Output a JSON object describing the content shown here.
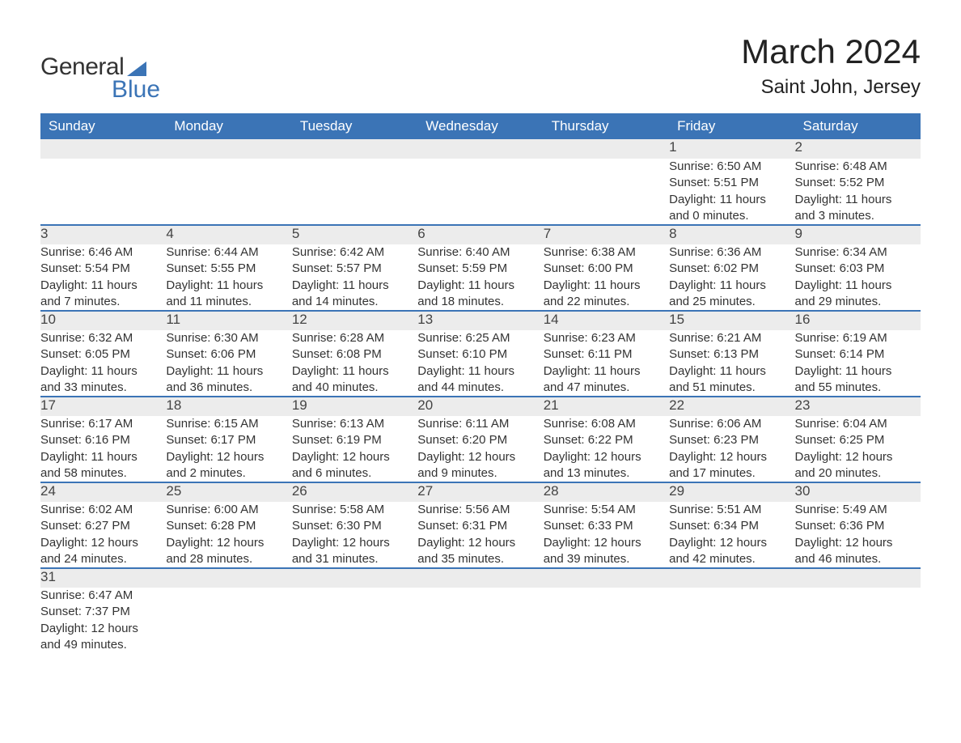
{
  "logo": {
    "text1": "General",
    "text2": "Blue",
    "brand_color": "#3b74b6"
  },
  "title": "March 2024",
  "location": "Saint John, Jersey",
  "day_headers": [
    "Sunday",
    "Monday",
    "Tuesday",
    "Wednesday",
    "Thursday",
    "Friday",
    "Saturday"
  ],
  "header_bg": "#3b74b6",
  "header_fg": "#ffffff",
  "row_alt_bg": "#ececec",
  "divider_color": "#3b74b6",
  "weeks": [
    [
      null,
      null,
      null,
      null,
      null,
      {
        "n": "1",
        "sunrise": "Sunrise: 6:50 AM",
        "sunset": "Sunset: 5:51 PM",
        "d1": "Daylight: 11 hours",
        "d2": "and 0 minutes."
      },
      {
        "n": "2",
        "sunrise": "Sunrise: 6:48 AM",
        "sunset": "Sunset: 5:52 PM",
        "d1": "Daylight: 11 hours",
        "d2": "and 3 minutes."
      }
    ],
    [
      {
        "n": "3",
        "sunrise": "Sunrise: 6:46 AM",
        "sunset": "Sunset: 5:54 PM",
        "d1": "Daylight: 11 hours",
        "d2": "and 7 minutes."
      },
      {
        "n": "4",
        "sunrise": "Sunrise: 6:44 AM",
        "sunset": "Sunset: 5:55 PM",
        "d1": "Daylight: 11 hours",
        "d2": "and 11 minutes."
      },
      {
        "n": "5",
        "sunrise": "Sunrise: 6:42 AM",
        "sunset": "Sunset: 5:57 PM",
        "d1": "Daylight: 11 hours",
        "d2": "and 14 minutes."
      },
      {
        "n": "6",
        "sunrise": "Sunrise: 6:40 AM",
        "sunset": "Sunset: 5:59 PM",
        "d1": "Daylight: 11 hours",
        "d2": "and 18 minutes."
      },
      {
        "n": "7",
        "sunrise": "Sunrise: 6:38 AM",
        "sunset": "Sunset: 6:00 PM",
        "d1": "Daylight: 11 hours",
        "d2": "and 22 minutes."
      },
      {
        "n": "8",
        "sunrise": "Sunrise: 6:36 AM",
        "sunset": "Sunset: 6:02 PM",
        "d1": "Daylight: 11 hours",
        "d2": "and 25 minutes."
      },
      {
        "n": "9",
        "sunrise": "Sunrise: 6:34 AM",
        "sunset": "Sunset: 6:03 PM",
        "d1": "Daylight: 11 hours",
        "d2": "and 29 minutes."
      }
    ],
    [
      {
        "n": "10",
        "sunrise": "Sunrise: 6:32 AM",
        "sunset": "Sunset: 6:05 PM",
        "d1": "Daylight: 11 hours",
        "d2": "and 33 minutes."
      },
      {
        "n": "11",
        "sunrise": "Sunrise: 6:30 AM",
        "sunset": "Sunset: 6:06 PM",
        "d1": "Daylight: 11 hours",
        "d2": "and 36 minutes."
      },
      {
        "n": "12",
        "sunrise": "Sunrise: 6:28 AM",
        "sunset": "Sunset: 6:08 PM",
        "d1": "Daylight: 11 hours",
        "d2": "and 40 minutes."
      },
      {
        "n": "13",
        "sunrise": "Sunrise: 6:25 AM",
        "sunset": "Sunset: 6:10 PM",
        "d1": "Daylight: 11 hours",
        "d2": "and 44 minutes."
      },
      {
        "n": "14",
        "sunrise": "Sunrise: 6:23 AM",
        "sunset": "Sunset: 6:11 PM",
        "d1": "Daylight: 11 hours",
        "d2": "and 47 minutes."
      },
      {
        "n": "15",
        "sunrise": "Sunrise: 6:21 AM",
        "sunset": "Sunset: 6:13 PM",
        "d1": "Daylight: 11 hours",
        "d2": "and 51 minutes."
      },
      {
        "n": "16",
        "sunrise": "Sunrise: 6:19 AM",
        "sunset": "Sunset: 6:14 PM",
        "d1": "Daylight: 11 hours",
        "d2": "and 55 minutes."
      }
    ],
    [
      {
        "n": "17",
        "sunrise": "Sunrise: 6:17 AM",
        "sunset": "Sunset: 6:16 PM",
        "d1": "Daylight: 11 hours",
        "d2": "and 58 minutes."
      },
      {
        "n": "18",
        "sunrise": "Sunrise: 6:15 AM",
        "sunset": "Sunset: 6:17 PM",
        "d1": "Daylight: 12 hours",
        "d2": "and 2 minutes."
      },
      {
        "n": "19",
        "sunrise": "Sunrise: 6:13 AM",
        "sunset": "Sunset: 6:19 PM",
        "d1": "Daylight: 12 hours",
        "d2": "and 6 minutes."
      },
      {
        "n": "20",
        "sunrise": "Sunrise: 6:11 AM",
        "sunset": "Sunset: 6:20 PM",
        "d1": "Daylight: 12 hours",
        "d2": "and 9 minutes."
      },
      {
        "n": "21",
        "sunrise": "Sunrise: 6:08 AM",
        "sunset": "Sunset: 6:22 PM",
        "d1": "Daylight: 12 hours",
        "d2": "and 13 minutes."
      },
      {
        "n": "22",
        "sunrise": "Sunrise: 6:06 AM",
        "sunset": "Sunset: 6:23 PM",
        "d1": "Daylight: 12 hours",
        "d2": "and 17 minutes."
      },
      {
        "n": "23",
        "sunrise": "Sunrise: 6:04 AM",
        "sunset": "Sunset: 6:25 PM",
        "d1": "Daylight: 12 hours",
        "d2": "and 20 minutes."
      }
    ],
    [
      {
        "n": "24",
        "sunrise": "Sunrise: 6:02 AM",
        "sunset": "Sunset: 6:27 PM",
        "d1": "Daylight: 12 hours",
        "d2": "and 24 minutes."
      },
      {
        "n": "25",
        "sunrise": "Sunrise: 6:00 AM",
        "sunset": "Sunset: 6:28 PM",
        "d1": "Daylight: 12 hours",
        "d2": "and 28 minutes."
      },
      {
        "n": "26",
        "sunrise": "Sunrise: 5:58 AM",
        "sunset": "Sunset: 6:30 PM",
        "d1": "Daylight: 12 hours",
        "d2": "and 31 minutes."
      },
      {
        "n": "27",
        "sunrise": "Sunrise: 5:56 AM",
        "sunset": "Sunset: 6:31 PM",
        "d1": "Daylight: 12 hours",
        "d2": "and 35 minutes."
      },
      {
        "n": "28",
        "sunrise": "Sunrise: 5:54 AM",
        "sunset": "Sunset: 6:33 PM",
        "d1": "Daylight: 12 hours",
        "d2": "and 39 minutes."
      },
      {
        "n": "29",
        "sunrise": "Sunrise: 5:51 AM",
        "sunset": "Sunset: 6:34 PM",
        "d1": "Daylight: 12 hours",
        "d2": "and 42 minutes."
      },
      {
        "n": "30",
        "sunrise": "Sunrise: 5:49 AM",
        "sunset": "Sunset: 6:36 PM",
        "d1": "Daylight: 12 hours",
        "d2": "and 46 minutes."
      }
    ],
    [
      {
        "n": "31",
        "sunrise": "Sunrise: 6:47 AM",
        "sunset": "Sunset: 7:37 PM",
        "d1": "Daylight: 12 hours",
        "d2": "and 49 minutes."
      },
      null,
      null,
      null,
      null,
      null,
      null
    ]
  ]
}
